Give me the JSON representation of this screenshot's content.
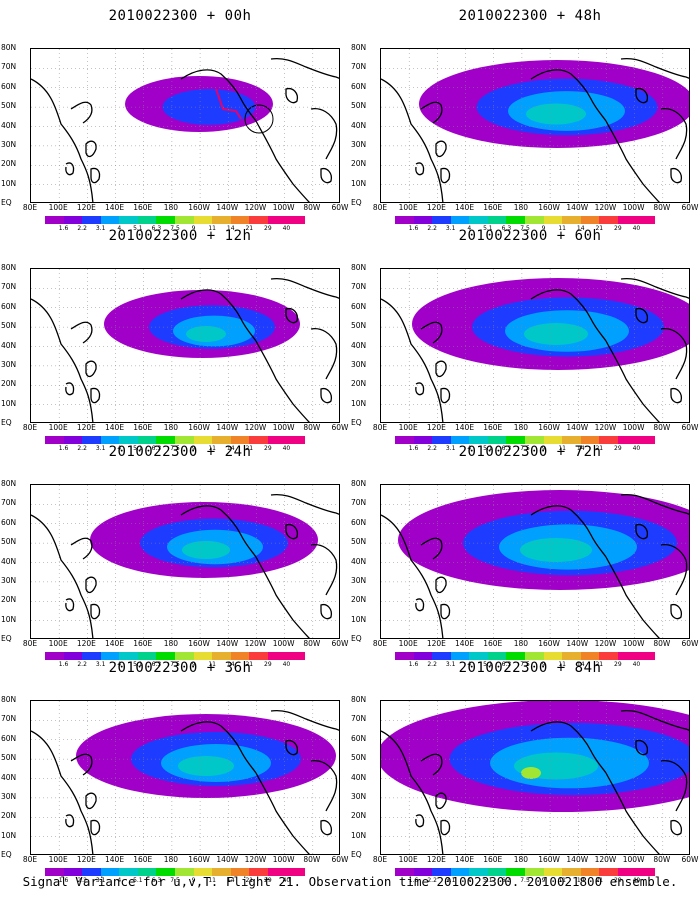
{
  "footer": "Signal Variance for u,v,T. Flight 21. Observation time 2010022300. 2010021800 ensemble.",
  "lat_labels": [
    "80N",
    "70N",
    "60N",
    "50N",
    "40N",
    "30N",
    "20N",
    "10N",
    "EQ"
  ],
  "lon_labels": [
    "80E",
    "100E",
    "120E",
    "140E",
    "160E",
    "180",
    "160W",
    "140W",
    "120W",
    "100W",
    "80W",
    "60W"
  ],
  "colorbar": {
    "labels": [
      "1.6",
      "2.2",
      "3.1",
      "4",
      "5.1",
      "6.3",
      "7.5",
      "9",
      "11",
      "14",
      "21",
      "29",
      "40"
    ],
    "colors": [
      "#a000c8",
      "#8200dc",
      "#1e3cff",
      "#00a0ff",
      "#00c8c8",
      "#00d28c",
      "#00dc00",
      "#a0e632",
      "#e6dc32",
      "#e6af2d",
      "#f08228",
      "#fa3c3c",
      "#f00082"
    ]
  },
  "panels": [
    {
      "title": "2010022300 + 00h",
      "intensity": 0.15
    },
    {
      "title": "2010022300 + 48h",
      "intensity": 0.55
    },
    {
      "title": "2010022300 + 12h",
      "intensity": 0.3
    },
    {
      "title": "2010022300 + 60h",
      "intensity": 0.6
    },
    {
      "title": "2010022300 + 24h",
      "intensity": 0.4
    },
    {
      "title": "2010022300 + 72h",
      "intensity": 0.7
    },
    {
      "title": "2010022300 + 36h",
      "intensity": 0.5
    },
    {
      "title": "2010022300 + 84h",
      "intensity": 0.85
    }
  ]
}
